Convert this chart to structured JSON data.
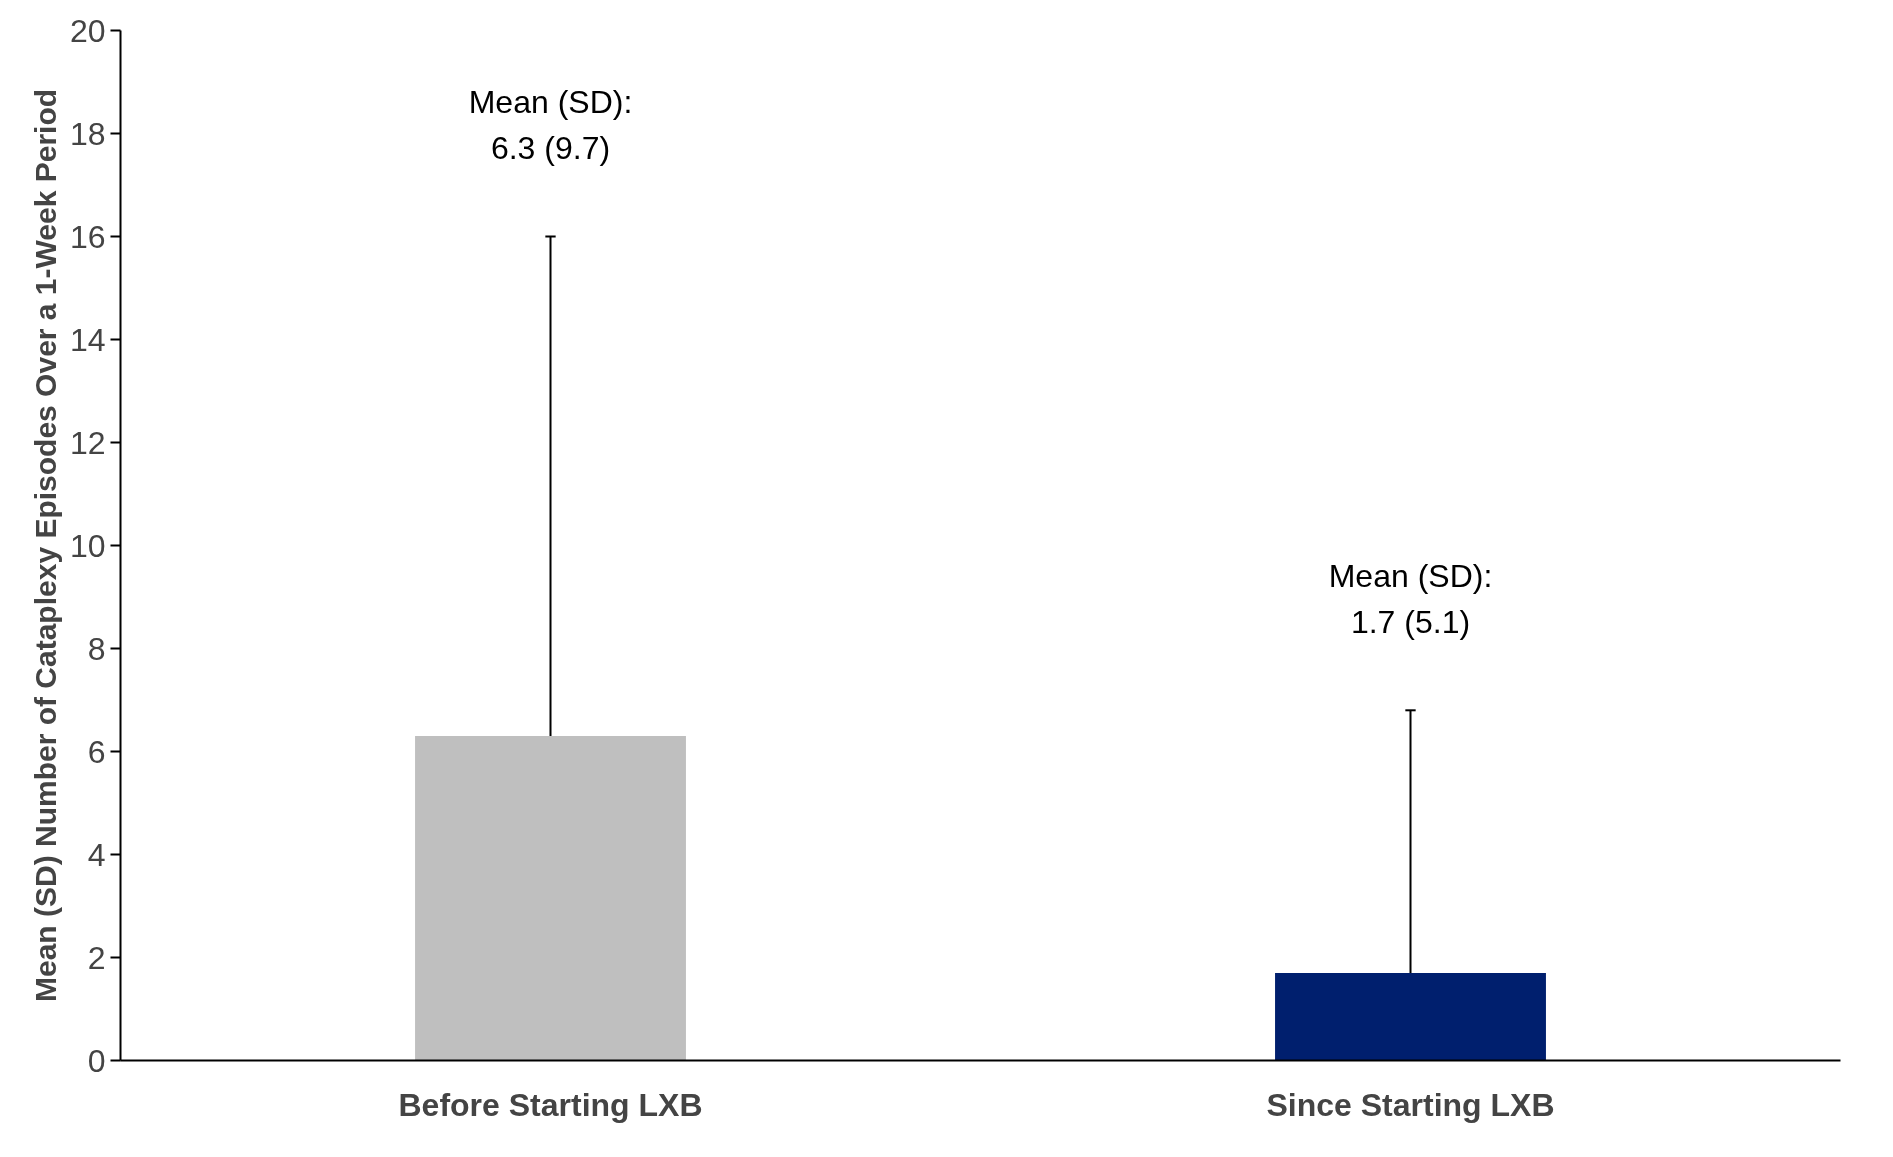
{
  "chart_data": {
    "type": "bar",
    "ylabel": "Mean (SD) Number of Cataplexy Episodes Over a 1-Week Period",
    "categories": [
      "Before Starting LXB",
      "Since Starting LXB"
    ],
    "values": [
      6.3,
      1.7
    ],
    "colors": [
      "#bfbfbf",
      "#001f6e"
    ],
    "errors": [
      [
        6.3,
        16.0
      ],
      [
        1.7,
        6.8
      ]
    ],
    "ylim": [
      0,
      20
    ],
    "yticks": [
      0,
      2,
      4,
      6,
      8,
      10,
      12,
      14,
      16,
      18,
      20
    ],
    "grid": false,
    "annotations": [
      "Mean (SD):\n6.3 (9.7)",
      "Mean (SD):\n1.7 (5.1)"
    ]
  }
}
